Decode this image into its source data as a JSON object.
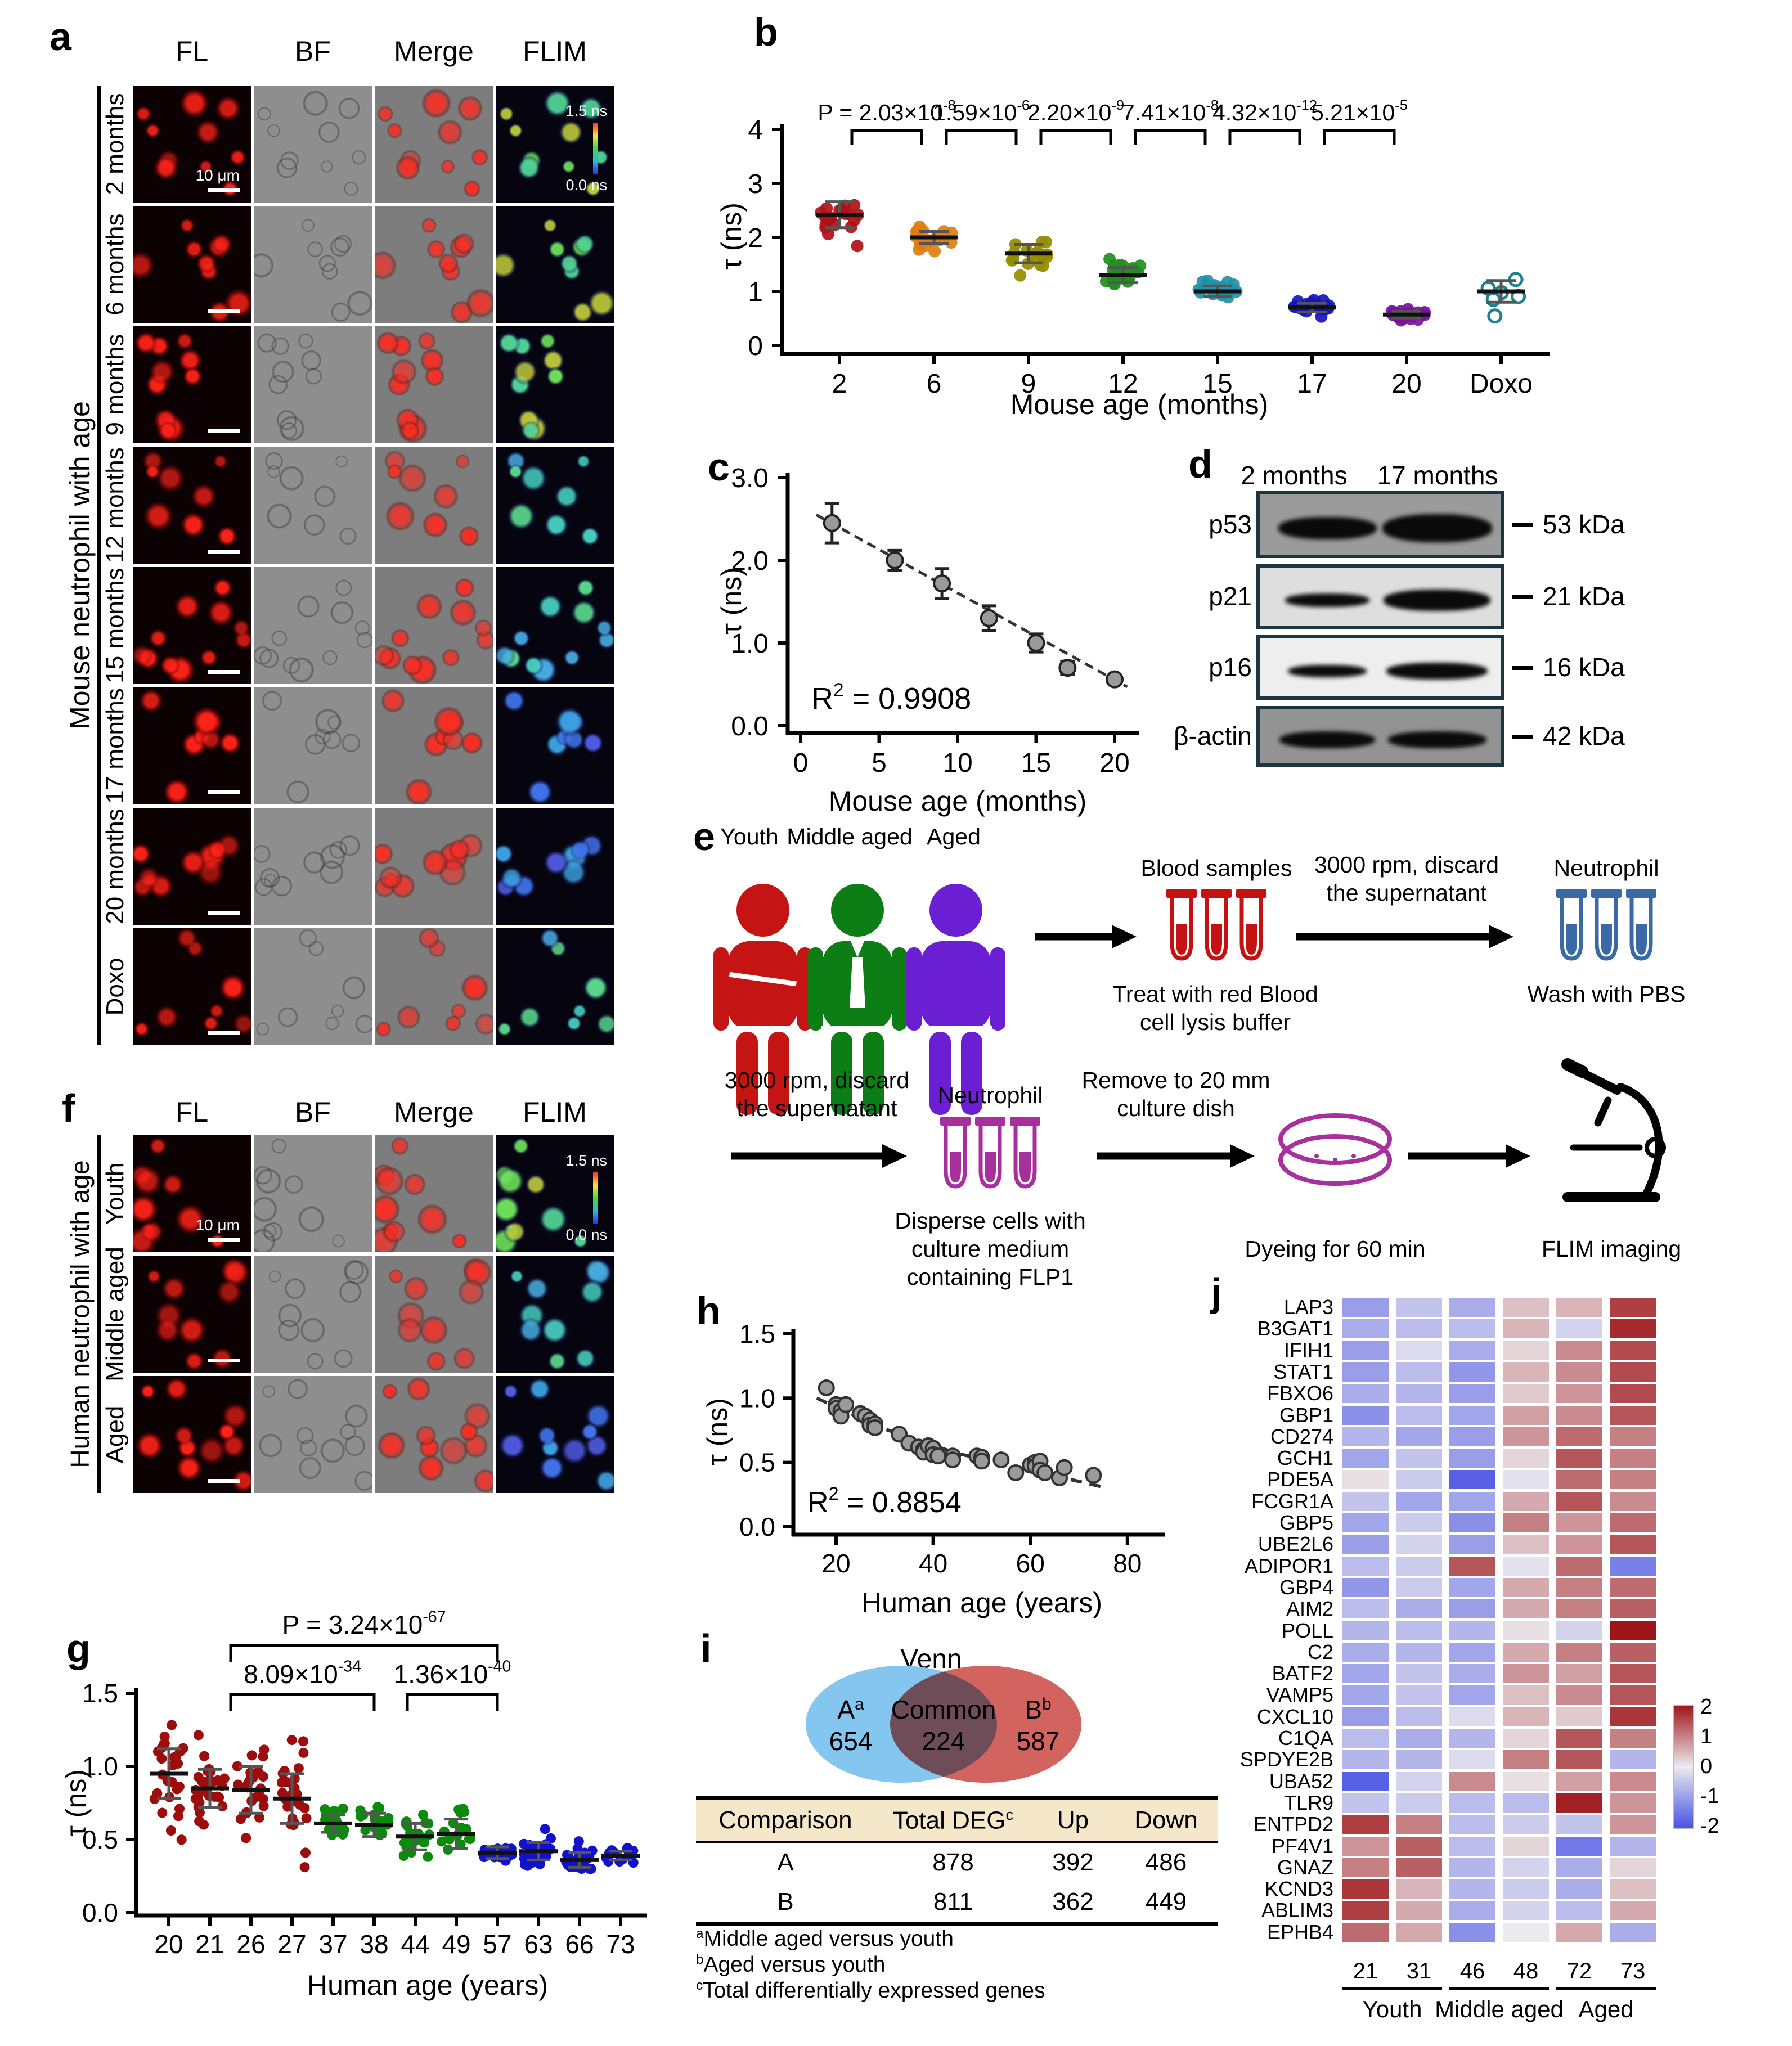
{
  "panel_letters": {
    "a": "a",
    "b": "b",
    "c": "c",
    "d": "d",
    "e": "e",
    "f": "f",
    "g": "g",
    "h": "h",
    "i": "i",
    "j": "j"
  },
  "panel_a": {
    "side_label": "Mouse neutrophil with age",
    "col_headers": [
      "FL",
      "BF",
      "Merge",
      "FLIM"
    ],
    "row_labels": [
      "2 months",
      "6 months",
      "9 months",
      "12 months",
      "15 months",
      "17 months",
      "20 months",
      "Doxo"
    ],
    "scale_bar_label": "10 μm",
    "flim_scale_top": "1.5 ns",
    "flim_scale_bottom": "0.0 ns"
  },
  "panel_f": {
    "side_label": "Human neutrophil with age",
    "col_headers": [
      "FL",
      "BF",
      "Merge",
      "FLIM"
    ],
    "row_labels": [
      "Youth",
      "Middle aged",
      "Aged"
    ],
    "scale_bar_label": "10 μm",
    "flim_scale_top": "1.5 ns",
    "flim_scale_bottom": "0.0 ns"
  },
  "panel_d": {
    "lane_labels": [
      "2 months",
      "17 months"
    ],
    "blots": [
      {
        "protein": "p53",
        "kda": "53 kDa"
      },
      {
        "protein": "p21",
        "kda": "21 kDa"
      },
      {
        "protein": "p16",
        "kda": "16 kDa"
      },
      {
        "protein": "β-actin",
        "kda": "42 kDa"
      }
    ]
  },
  "panel_e": {
    "person_labels": [
      "Youth",
      "Middle aged",
      "Aged"
    ],
    "person_colors": [
      "#c41414",
      "#0d7d16",
      "#6b1fd2"
    ],
    "blood_title": "Blood samples",
    "blood_caption": "Treat with red Blood\ncell lysis buffer",
    "spin_label": "3000 rpm, discard\nthe supernatant",
    "neutrophil_title": "Neutrophil",
    "wash_caption": "Wash with PBS",
    "spin_label2": "3000 rpm, discard\nthe supernatant",
    "neutrophil_title2": "Neutrophil",
    "disperse_caption": "Disperse cells with\nculture medium\ncontaining FLP1",
    "remove_label": "Remove to 20 mm\nculture dish",
    "dyeing_caption": "Dyeing for 60 min",
    "flim_caption": "FLIM imaging",
    "tube_colors": {
      "blood": "#c41111",
      "neutrophil": "#3a6aa6",
      "flp1": "#a8309c"
    }
  },
  "panel_i": {
    "venn_title": "Venn",
    "set_a": {
      "label": "A",
      "sup": "a",
      "value": "654"
    },
    "common": {
      "label": "Common",
      "value": "224"
    },
    "set_b": {
      "label": "B",
      "sup": "b",
      "value": "587"
    },
    "colors": {
      "a": "#85c6f0",
      "b": "#d2635e"
    },
    "table": {
      "headers": [
        "Comparison",
        "Total DEG",
        "Up",
        "Down"
      ],
      "header_sup": "c",
      "header_bg": "#f5e7c9",
      "rows": [
        {
          "comparison": "A",
          "total": "878",
          "up": "392",
          "down": "486"
        },
        {
          "comparison": "B",
          "total": "811",
          "up": "362",
          "down": "449"
        }
      ]
    },
    "footnotes": [
      {
        "sup": "a",
        "text": "Middle aged versus youth"
      },
      {
        "sup": "b",
        "text": "Aged versus youth"
      },
      {
        "sup": "c",
        "text": "Total differentially expressed genes"
      }
    ]
  },
  "chart_data": [
    {
      "id": "b",
      "type": "scatter",
      "xlabel": "Mouse age (months)",
      "ylabel": "τ (ns)",
      "ylim": [
        0,
        4
      ],
      "yticks": [
        "0",
        "1",
        "2",
        "3",
        "4"
      ],
      "categories": [
        "2",
        "6",
        "9",
        "12",
        "15",
        "17",
        "20",
        "Doxo"
      ],
      "means": [
        2.42,
        2.0,
        1.7,
        1.3,
        1.0,
        0.7,
        0.57,
        1.0
      ],
      "sds": [
        0.24,
        0.11,
        0.17,
        0.14,
        0.1,
        0.08,
        0.06,
        0.2
      ],
      "n": [
        19,
        20,
        19,
        20,
        18,
        17,
        20,
        6
      ],
      "colors": [
        "#b01117",
        "#e07d12",
        "#958d00",
        "#1f8f1f",
        "#2191a8",
        "#1616bc",
        "#7a12a0",
        "#20818f"
      ],
      "open_markers_last_group": true,
      "p_values": [
        {
          "prefix": "P = ",
          "base": "2.03×10",
          "exp": "-8",
          "from": 0,
          "to": 1
        },
        {
          "prefix": "",
          "base": "1.59×10",
          "exp": "-6",
          "from": 1,
          "to": 2
        },
        {
          "prefix": "",
          "base": "2.20×10",
          "exp": "-9",
          "from": 2,
          "to": 3
        },
        {
          "prefix": "",
          "base": "7.41×10",
          "exp": "-8",
          "from": 3,
          "to": 4
        },
        {
          "prefix": "",
          "base": "4.32×10",
          "exp": "-12",
          "from": 4,
          "to": 5
        },
        {
          "prefix": "",
          "base": "5.21×10",
          "exp": "-5",
          "from": 5,
          "to": 6
        }
      ]
    },
    {
      "id": "c",
      "type": "line",
      "xlabel": "Mouse age (months)",
      "ylabel": "τ (ns)",
      "xlim": [
        0,
        20
      ],
      "ylim": [
        0,
        3
      ],
      "xticks": [
        "0",
        "5",
        "10",
        "15",
        "20"
      ],
      "yticks": [
        "0.0",
        "1.0",
        "2.0",
        "3.0"
      ],
      "x": [
        2,
        6,
        9,
        12,
        15,
        17,
        20
      ],
      "y": [
        2.45,
        2.0,
        1.72,
        1.3,
        1.0,
        0.7,
        0.56
      ],
      "yerr": [
        0.24,
        0.12,
        0.18,
        0.15,
        0.11,
        0.08,
        0.05
      ],
      "fit_line": {
        "x1": 1.0,
        "y1": 2.55,
        "x2": 20.8,
        "y2": 0.47
      },
      "r2": {
        "base": "R",
        "sup": "2",
        "rest": " = 0.9908"
      }
    },
    {
      "id": "g",
      "type": "scatter",
      "xlabel": "Human age (years)",
      "ylabel": "τ (ns)",
      "ylim": [
        0,
        1.5
      ],
      "yticks": [
        "0.0",
        "0.5",
        "1.0",
        "1.5"
      ],
      "categories": [
        "20",
        "21",
        "26",
        "27",
        "37",
        "38",
        "44",
        "49",
        "57",
        "63",
        "66",
        "73"
      ],
      "means": [
        0.95,
        0.85,
        0.84,
        0.78,
        0.61,
        0.6,
        0.52,
        0.54,
        0.41,
        0.42,
        0.36,
        0.39
      ],
      "sds": [
        0.17,
        0.13,
        0.16,
        0.17,
        0.06,
        0.08,
        0.09,
        0.1,
        0.04,
        0.06,
        0.05,
        0.03
      ],
      "n": [
        26,
        28,
        26,
        28,
        18,
        20,
        22,
        16,
        24,
        28,
        26,
        16
      ],
      "colors": [
        "#9d0d0d",
        "#9d0d0d",
        "#9d0d0d",
        "#9d0d0d",
        "#0c8a0c",
        "#0c8a0c",
        "#0c8a0c",
        "#0c8a0c",
        "#1212cc",
        "#1212cc",
        "#1212cc",
        "#1212cc"
      ],
      "p_values": [
        {
          "prefix": "P = ",
          "base": "3.24×10",
          "exp": "-67",
          "from": 1,
          "to": 8,
          "level": 0
        },
        {
          "prefix": "",
          "base": "8.09×10",
          "exp": "-34",
          "from": 2,
          "to": 5,
          "level": 1
        },
        {
          "prefix": "",
          "base": "1.36×10",
          "exp": "-40",
          "from": 6,
          "to": 8,
          "level": 1
        }
      ]
    },
    {
      "id": "h",
      "type": "scatter",
      "xlabel": "Human age (years)",
      "ylabel": "τ (ns)",
      "xlim": [
        15,
        80
      ],
      "ylim": [
        0,
        1.5
      ],
      "xticks": [
        "20",
        "40",
        "60",
        "80"
      ],
      "yticks": [
        "0.0",
        "0.5",
        "1.0",
        "1.5"
      ],
      "points": [
        [
          18,
          1.08
        ],
        [
          20,
          0.95
        ],
        [
          20,
          0.92
        ],
        [
          21,
          0.9
        ],
        [
          21,
          0.86
        ],
        [
          22,
          0.95
        ],
        [
          25,
          0.88
        ],
        [
          26,
          0.86
        ],
        [
          27,
          0.83
        ],
        [
          27,
          0.79
        ],
        [
          28,
          0.8
        ],
        [
          28,
          0.77
        ],
        [
          33,
          0.72
        ],
        [
          35,
          0.65
        ],
        [
          37,
          0.62
        ],
        [
          38,
          0.6
        ],
        [
          38,
          0.58
        ],
        [
          39,
          0.63
        ],
        [
          40,
          0.61
        ],
        [
          40,
          0.56
        ],
        [
          41,
          0.55
        ],
        [
          44,
          0.55
        ],
        [
          44,
          0.52
        ],
        [
          49,
          0.55
        ],
        [
          50,
          0.54
        ],
        [
          50,
          0.51
        ],
        [
          54,
          0.52
        ],
        [
          57,
          0.42
        ],
        [
          60,
          0.48
        ],
        [
          61,
          0.5
        ],
        [
          61,
          0.47
        ],
        [
          62,
          0.51
        ],
        [
          62,
          0.44
        ],
        [
          63,
          0.42
        ],
        [
          66,
          0.38
        ],
        [
          67,
          0.46
        ],
        [
          73,
          0.4
        ]
      ],
      "fit_poly": [
        [
          16,
          1.0
        ],
        [
          30,
          0.76
        ],
        [
          45,
          0.57
        ],
        [
          60,
          0.44
        ],
        [
          76,
          0.3
        ]
      ],
      "r2": {
        "base": "R",
        "sup": "2",
        "rest": " = 0.8854"
      }
    },
    {
      "id": "j",
      "type": "heatmap",
      "genes": [
        "LAP3",
        "B3GAT1",
        "IFIH1",
        "STAT1",
        "FBXO6",
        "GBP1",
        "CD274",
        "GCH1",
        "PDE5A",
        "FCGR1A",
        "GBP5",
        "UBE2L6",
        "ADIPOR1",
        "GBP4",
        "AIM2",
        "POLL",
        "C2",
        "BATF2",
        "VAMP5",
        "CXCL10",
        "C1QA",
        "SPDYE2B",
        "UBA52",
        "TLR9",
        "ENTPD2",
        "PF4V1",
        "GNAZ",
        "KCND3",
        "ABLIM3",
        "EPHB4"
      ],
      "samples": [
        "21",
        "31",
        "46",
        "48",
        "72",
        "73"
      ],
      "groups": [
        {
          "label": "Youth",
          "cols": [
            0,
            1
          ]
        },
        {
          "label": "Middle aged",
          "cols": [
            2,
            3
          ]
        },
        {
          "label": "Aged",
          "cols": [
            4,
            5
          ]
        }
      ],
      "vmin": -2,
      "vmax": 2,
      "colorbar_ticks": [
        "2",
        "1",
        "0",
        "-1",
        "-2"
      ],
      "values": [
        [
          -1.0,
          -0.5,
          -0.8,
          0.4,
          0.5,
          1.6
        ],
        [
          -0.8,
          -0.6,
          -0.6,
          0.5,
          -0.3,
          1.8
        ],
        [
          -1.0,
          -0.2,
          -0.8,
          0.2,
          0.9,
          1.5
        ],
        [
          -1.0,
          -0.6,
          -1.1,
          0.5,
          0.9,
          1.5
        ],
        [
          -0.8,
          -0.7,
          -1.0,
          0.3,
          0.8,
          1.5
        ],
        [
          -1.2,
          -0.6,
          -0.9,
          0.7,
          0.9,
          1.4
        ],
        [
          -0.7,
          -0.9,
          -1.0,
          0.8,
          1.2,
          1.0
        ],
        [
          -0.9,
          -0.5,
          -1.0,
          0.2,
          1.4,
          1.0
        ],
        [
          0.1,
          -0.4,
          -1.8,
          -0.1,
          1.2,
          1.0
        ],
        [
          -0.5,
          -0.9,
          -0.9,
          0.6,
          1.4,
          0.9
        ],
        [
          -0.9,
          -0.4,
          -1.2,
          1.0,
          0.8,
          1.2
        ],
        [
          -1.0,
          -0.3,
          -1.0,
          0.4,
          0.8,
          1.4
        ],
        [
          -0.6,
          -0.4,
          1.4,
          -0.1,
          1.2,
          -1.4
        ],
        [
          -1.1,
          -0.4,
          -0.9,
          0.6,
          1.0,
          1.2
        ],
        [
          -0.6,
          -0.8,
          -1.0,
          0.6,
          1.0,
          1.3
        ],
        [
          -0.7,
          -0.6,
          -0.7,
          0.1,
          -0.3,
          2.0
        ],
        [
          -0.8,
          -0.7,
          -0.9,
          0.6,
          1.0,
          1.3
        ],
        [
          -0.9,
          -0.5,
          -0.8,
          0.8,
          0.7,
          1.4
        ],
        [
          -0.9,
          -0.5,
          -0.9,
          0.4,
          0.9,
          1.4
        ],
        [
          -1.0,
          -0.6,
          -0.2,
          0.5,
          0.3,
          1.7
        ],
        [
          -0.6,
          -0.8,
          -0.7,
          0.2,
          1.4,
          1.0
        ],
        [
          -0.7,
          -0.7,
          -0.2,
          1.0,
          1.4,
          -0.7
        ],
        [
          -1.8,
          -0.3,
          0.9,
          0.1,
          0.7,
          0.9
        ],
        [
          -0.5,
          -0.4,
          -0.6,
          -0.6,
          1.9,
          0.8
        ],
        [
          1.6,
          1.0,
          -0.6,
          -0.4,
          -0.5,
          0.8
        ],
        [
          0.8,
          1.3,
          -0.6,
          0.2,
          -1.5,
          -0.7
        ],
        [
          1.0,
          1.3,
          -0.7,
          -0.3,
          -0.8,
          0.2
        ],
        [
          1.7,
          0.5,
          -0.7,
          -0.4,
          -0.8,
          0.4
        ],
        [
          1.6,
          0.6,
          -0.8,
          -0.3,
          -0.6,
          0.6
        ],
        [
          1.2,
          0.6,
          -1.2,
          0.0,
          0.6,
          -0.8
        ]
      ]
    }
  ]
}
